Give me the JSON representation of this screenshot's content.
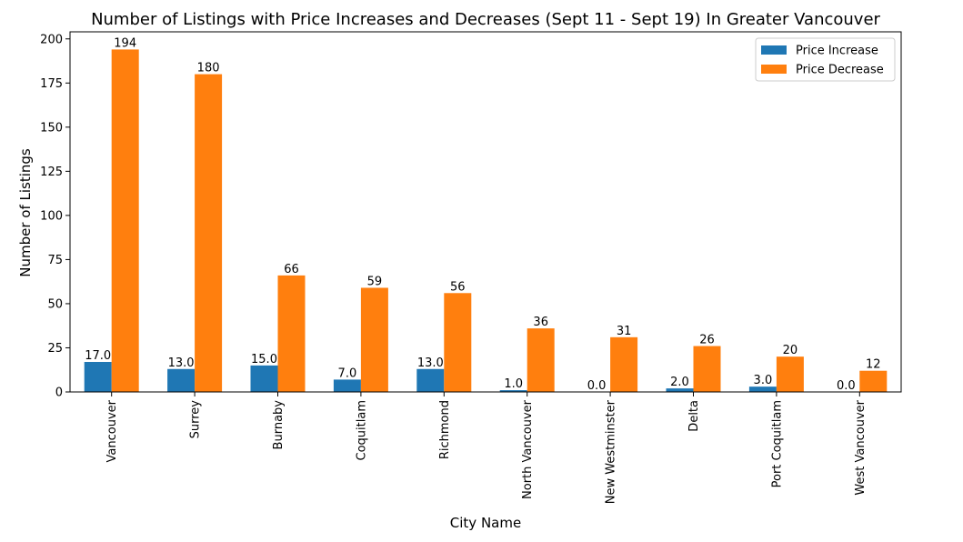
{
  "chart_data": {
    "type": "bar",
    "title": "Number of Listings with Price Increases and Decreases (Sept 11 - Sept 19) In Greater Vancouver",
    "xlabel": "City Name",
    "ylabel": "Number of Listings",
    "ylim": [
      0,
      204
    ],
    "yticks": [
      0,
      25,
      50,
      75,
      100,
      125,
      150,
      175,
      200
    ],
    "grid": false,
    "legend_position": "top-right",
    "categories": [
      "Vancouver",
      "Surrey",
      "Burnaby",
      "Coquitlam",
      "Richmond",
      "North Vancouver",
      "New Westminster",
      "Delta",
      "Port Coquitlam",
      "West Vancouver"
    ],
    "series": [
      {
        "name": "Price Increase",
        "color": "#1f77b4",
        "values": [
          17,
          13,
          15,
          7,
          13,
          1,
          0,
          2,
          3,
          0
        ],
        "labels": [
          "17.0",
          "13.0",
          "15.0",
          "7.0",
          "13.0",
          "1.0",
          "0.0",
          "2.0",
          "3.0",
          "0.0"
        ]
      },
      {
        "name": "Price Decrease",
        "color": "#ff7f0e",
        "values": [
          194,
          180,
          66,
          59,
          56,
          36,
          31,
          26,
          20,
          12
        ],
        "labels": [
          "194",
          "180",
          "66",
          "59",
          "56",
          "36",
          "31",
          "26",
          "20",
          "12"
        ]
      }
    ]
  }
}
